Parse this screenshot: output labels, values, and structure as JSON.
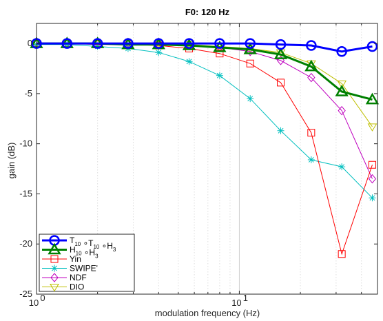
{
  "chart_data": {
    "type": "line",
    "title": "F0: 120 Hz",
    "xlabel": "modulation frequency (Hz)",
    "ylabel": "gain (dB)",
    "xscale": "log",
    "xlim": [
      1,
      48
    ],
    "ylim": [
      -25,
      2
    ],
    "grid": "vertical",
    "legend_position": "bottom-left",
    "x_ticks": [
      {
        "value": 1,
        "base": "10",
        "exp": "0"
      },
      {
        "value": 10,
        "base": "10",
        "exp": "1"
      }
    ],
    "y_ticks": [
      {
        "value": 0,
        "label": "0"
      },
      {
        "value": -5,
        "label": "-5"
      },
      {
        "value": -10,
        "label": "-10"
      },
      {
        "value": -15,
        "label": "-15"
      },
      {
        "value": -20,
        "label": "-20"
      },
      {
        "value": -25,
        "label": "-25"
      }
    ],
    "x": [
      1,
      1.414,
      2,
      2.828,
      4,
      5.657,
      8,
      11.314,
      16,
      22.627,
      32,
      45.255
    ],
    "series": [
      {
        "name_parts": [
          [
            "T",
            "10"
          ],
          [
            " ∘T",
            "10"
          ],
          [
            " ∘H",
            "3"
          ]
        ],
        "color": "#0000ff",
        "marker": "circle",
        "linewidth": 3,
        "values": [
          0,
          0,
          0,
          0,
          0,
          0,
          0,
          0,
          -0.1,
          -0.2,
          -0.8,
          -0.3
        ]
      },
      {
        "name_parts": [
          [
            "H",
            "10"
          ],
          [
            " ∘H",
            "3"
          ]
        ],
        "color": "#008000",
        "marker": "triangle-up",
        "linewidth": 3,
        "values": [
          0,
          0,
          0,
          -0.1,
          -0.1,
          -0.2,
          -0.4,
          -0.6,
          -1.1,
          -2.3,
          -4.8,
          -5.6
        ]
      },
      {
        "name": "Yin",
        "color": "#ff0000",
        "marker": "square",
        "linewidth": 1,
        "values": [
          0,
          0,
          -0.1,
          -0.1,
          -0.2,
          -0.5,
          -1.0,
          -2.0,
          -3.9,
          -8.9,
          -21.0,
          -12.1
        ]
      },
      {
        "name": "SWIPE'",
        "color": "#00bfbf",
        "marker": "asterisk",
        "linewidth": 1,
        "values": [
          -0.1,
          -0.1,
          -0.3,
          -0.5,
          -0.9,
          -1.8,
          -3.2,
          -5.5,
          -8.7,
          -11.6,
          -12.3,
          -15.4
        ]
      },
      {
        "name": "NDF",
        "color": "#bf00bf",
        "marker": "diamond",
        "linewidth": 1,
        "values": [
          0,
          0,
          0,
          0,
          -0.1,
          -0.2,
          -0.4,
          -0.8,
          -1.7,
          -3.4,
          -6.7,
          -13.5
        ]
      },
      {
        "name": "DIO",
        "color": "#bfbf00",
        "marker": "triangle-down",
        "linewidth": 1,
        "values": [
          0,
          0,
          0,
          0,
          0,
          -0.1,
          -0.3,
          -0.5,
          -0.9,
          -2.0,
          -4.0,
          -8.3
        ]
      }
    ]
  }
}
